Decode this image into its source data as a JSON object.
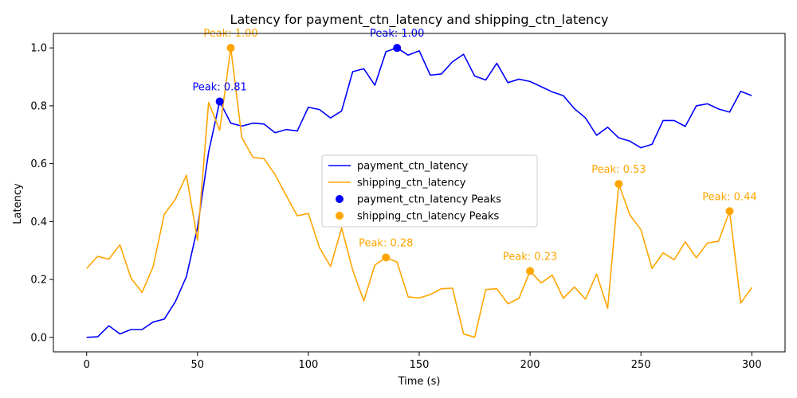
{
  "chart_data": {
    "type": "line",
    "title": "Latency for payment_ctn_latency and shipping_ctn_latency",
    "xlabel": "Time (s)",
    "ylabel": "Latency",
    "xlim": [
      -15,
      315
    ],
    "ylim": [
      -0.05,
      1.05
    ],
    "xticks": [
      0,
      50,
      100,
      150,
      200,
      250,
      300
    ],
    "yticks": [
      0.0,
      0.2,
      0.4,
      0.6,
      0.8,
      1.0
    ],
    "xtick_labels": [
      "0",
      "50",
      "100",
      "150",
      "200",
      "250",
      "300"
    ],
    "ytick_labels": [
      "0.0",
      "0.2",
      "0.4",
      "0.6",
      "0.8",
      "1.0"
    ],
    "grid": false,
    "legend_position": "center-right",
    "x": [
      0,
      5,
      10,
      15,
      20,
      25,
      30,
      35,
      40,
      45,
      50,
      55,
      60,
      65,
      70,
      75,
      80,
      85,
      90,
      95,
      100,
      105,
      110,
      115,
      120,
      125,
      130,
      135,
      140,
      145,
      150,
      155,
      160,
      165,
      170,
      175,
      180,
      185,
      190,
      195,
      200,
      205,
      210,
      215,
      220,
      225,
      230,
      235,
      240,
      245,
      250,
      255,
      260,
      265,
      270,
      275,
      280,
      285,
      290,
      295,
      300
    ],
    "series": [
      {
        "name": "payment_ctn_latency",
        "color": "#0000ff",
        "values": [
          0.0,
          0.002,
          0.04,
          0.012,
          0.027,
          0.027,
          0.053,
          0.063,
          0.123,
          0.21,
          0.38,
          0.64,
          0.815,
          0.74,
          0.73,
          0.74,
          0.737,
          0.707,
          0.718,
          0.713,
          0.795,
          0.787,
          0.758,
          0.782,
          0.918,
          0.928,
          0.871,
          0.987,
          1.0,
          0.975,
          0.99,
          0.906,
          0.91,
          0.952,
          0.978,
          0.903,
          0.889,
          0.947,
          0.88,
          0.892,
          0.884,
          0.866,
          0.848,
          0.835,
          0.79,
          0.758,
          0.698,
          0.726,
          0.689,
          0.678,
          0.655,
          0.667,
          0.749,
          0.749,
          0.729,
          0.8,
          0.807,
          0.789,
          0.778,
          0.85,
          0.835
        ]
      },
      {
        "name": "shipping_ctn_latency",
        "color": "#ffa500",
        "values": [
          0.238,
          0.28,
          0.27,
          0.32,
          0.205,
          0.155,
          0.245,
          0.425,
          0.477,
          0.56,
          0.335,
          0.812,
          0.715,
          1.0,
          0.69,
          0.622,
          0.617,
          0.562,
          0.49,
          0.42,
          0.428,
          0.31,
          0.245,
          0.378,
          0.232,
          0.126,
          0.25,
          0.276,
          0.26,
          0.14,
          0.136,
          0.148,
          0.168,
          0.17,
          0.012,
          0.0,
          0.165,
          0.168,
          0.116,
          0.135,
          0.229,
          0.188,
          0.215,
          0.135,
          0.174,
          0.132,
          0.219,
          0.1,
          0.53,
          0.423,
          0.372,
          0.238,
          0.292,
          0.268,
          0.33,
          0.275,
          0.326,
          0.332,
          0.436,
          0.118,
          0.172
        ]
      }
    ],
    "peaks": [
      {
        "series": "payment_ctn_latency",
        "x": 60,
        "y": 0.815,
        "label": "Peak: 0.81",
        "color": "#0000ff"
      },
      {
        "series": "payment_ctn_latency",
        "x": 140,
        "y": 1.0,
        "label": "Peak: 1.00",
        "color": "#0000ff"
      },
      {
        "series": "shipping_ctn_latency",
        "x": 65,
        "y": 1.0,
        "label": "Peak: 1.00",
        "color": "#ffa500"
      },
      {
        "series": "shipping_ctn_latency",
        "x": 135,
        "y": 0.276,
        "label": "Peak: 0.28",
        "color": "#ffa500"
      },
      {
        "series": "shipping_ctn_latency",
        "x": 200,
        "y": 0.229,
        "label": "Peak: 0.23",
        "color": "#ffa500"
      },
      {
        "series": "shipping_ctn_latency",
        "x": 240,
        "y": 0.53,
        "label": "Peak: 0.53",
        "color": "#ffa500"
      },
      {
        "series": "shipping_ctn_latency",
        "x": 290,
        "y": 0.436,
        "label": "Peak: 0.44",
        "color": "#ffa500"
      }
    ],
    "legend": [
      {
        "label": "payment_ctn_latency",
        "kind": "line",
        "color": "#0000ff"
      },
      {
        "label": "shipping_ctn_latency",
        "kind": "line",
        "color": "#ffa500"
      },
      {
        "label": "payment_ctn_latency Peaks",
        "kind": "marker",
        "color": "#0000ff"
      },
      {
        "label": "shipping_ctn_latency Peaks",
        "kind": "marker",
        "color": "#ffa500"
      }
    ]
  }
}
